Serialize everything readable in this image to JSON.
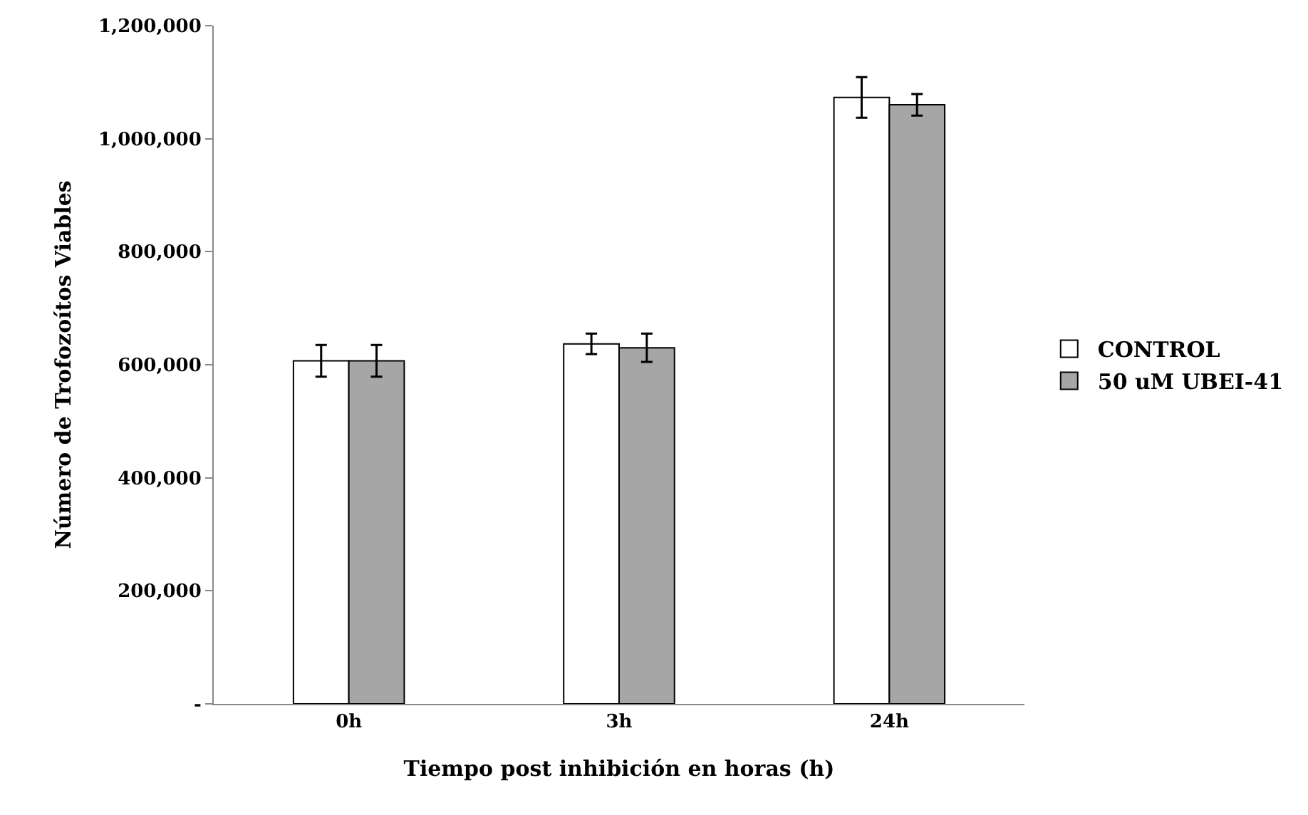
{
  "chart_data": {
    "type": "bar",
    "xlabel": "Tiempo post inhibición en horas (h)",
    "ylabel": "Número de Trofozoítos Viables",
    "categories": [
      "0h",
      "3h",
      "24h"
    ],
    "series": [
      {
        "name": "CONTROL",
        "color": "#ffffff",
        "values": [
          607000,
          637000,
          1073000
        ],
        "errors": [
          28000,
          18000,
          36000
        ]
      },
      {
        "name": "50 uM UBEI-41",
        "color": "#a6a6a6",
        "values": [
          607000,
          630000,
          1060000
        ],
        "errors": [
          28000,
          25000,
          19000
        ]
      }
    ],
    "ylim": [
      0,
      1200000
    ],
    "yticks": [
      {
        "value": 0,
        "label": "-"
      },
      {
        "value": 200000,
        "label": "200,000"
      },
      {
        "value": 400000,
        "label": "400,000"
      },
      {
        "value": 600000,
        "label": "600,000"
      },
      {
        "value": 800000,
        "label": "800,000"
      },
      {
        "value": 1000000,
        "label": "1,000,000"
      },
      {
        "value": 1200000,
        "label": "1,200,000"
      }
    ],
    "grid": false,
    "legend": "right"
  }
}
